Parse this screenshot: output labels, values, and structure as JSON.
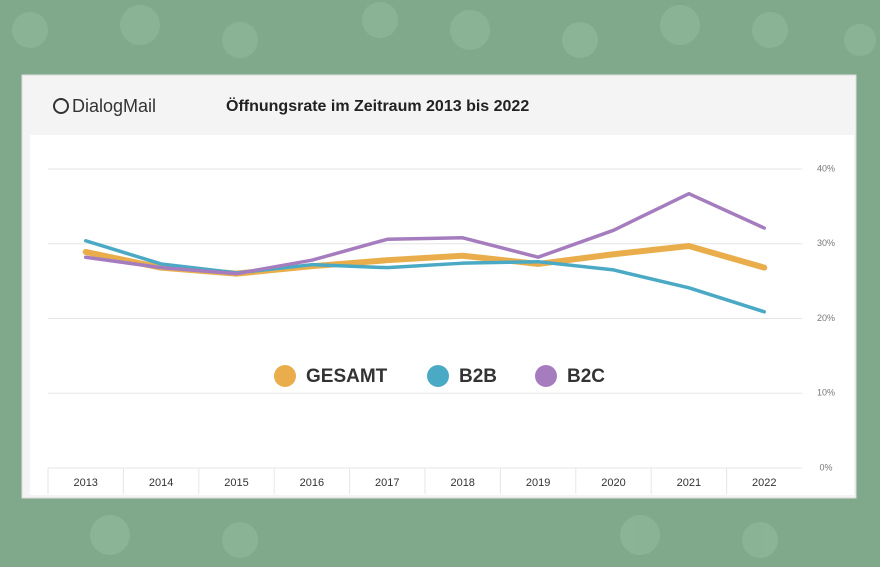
{
  "brand": "DialogMail",
  "chart_data": {
    "type": "line",
    "title": "Öffnungsrate im Zeitraum 2013 bis 2022",
    "categories": [
      "2013",
      "2014",
      "2015",
      "2016",
      "2017",
      "2018",
      "2019",
      "2020",
      "2021",
      "2022"
    ],
    "series": [
      {
        "name": "GESAMT",
        "color": "#e9ae4b",
        "values": [
          28.9,
          26.8,
          26.0,
          27.0,
          27.8,
          28.4,
          27.3,
          28.6,
          29.7,
          26.8
        ]
      },
      {
        "name": "B2B",
        "color": "#4aa9c4",
        "values": [
          30.4,
          27.3,
          26.1,
          27.2,
          26.8,
          27.4,
          27.6,
          26.5,
          24.1,
          20.9
        ]
      },
      {
        "name": "B2C",
        "color": "#a57dbf",
        "values": [
          28.2,
          26.8,
          26.0,
          27.8,
          30.6,
          30.8,
          28.2,
          31.8,
          36.7,
          32.1
        ]
      }
    ],
    "ylim": [
      0,
      40
    ],
    "yticks": [
      {
        "value": 0,
        "label": "0%"
      },
      {
        "value": 10,
        "label": "10%"
      },
      {
        "value": 20,
        "label": "20%"
      },
      {
        "value": 30,
        "label": "30%"
      },
      {
        "value": 40,
        "label": "40%"
      }
    ],
    "grid": true
  }
}
